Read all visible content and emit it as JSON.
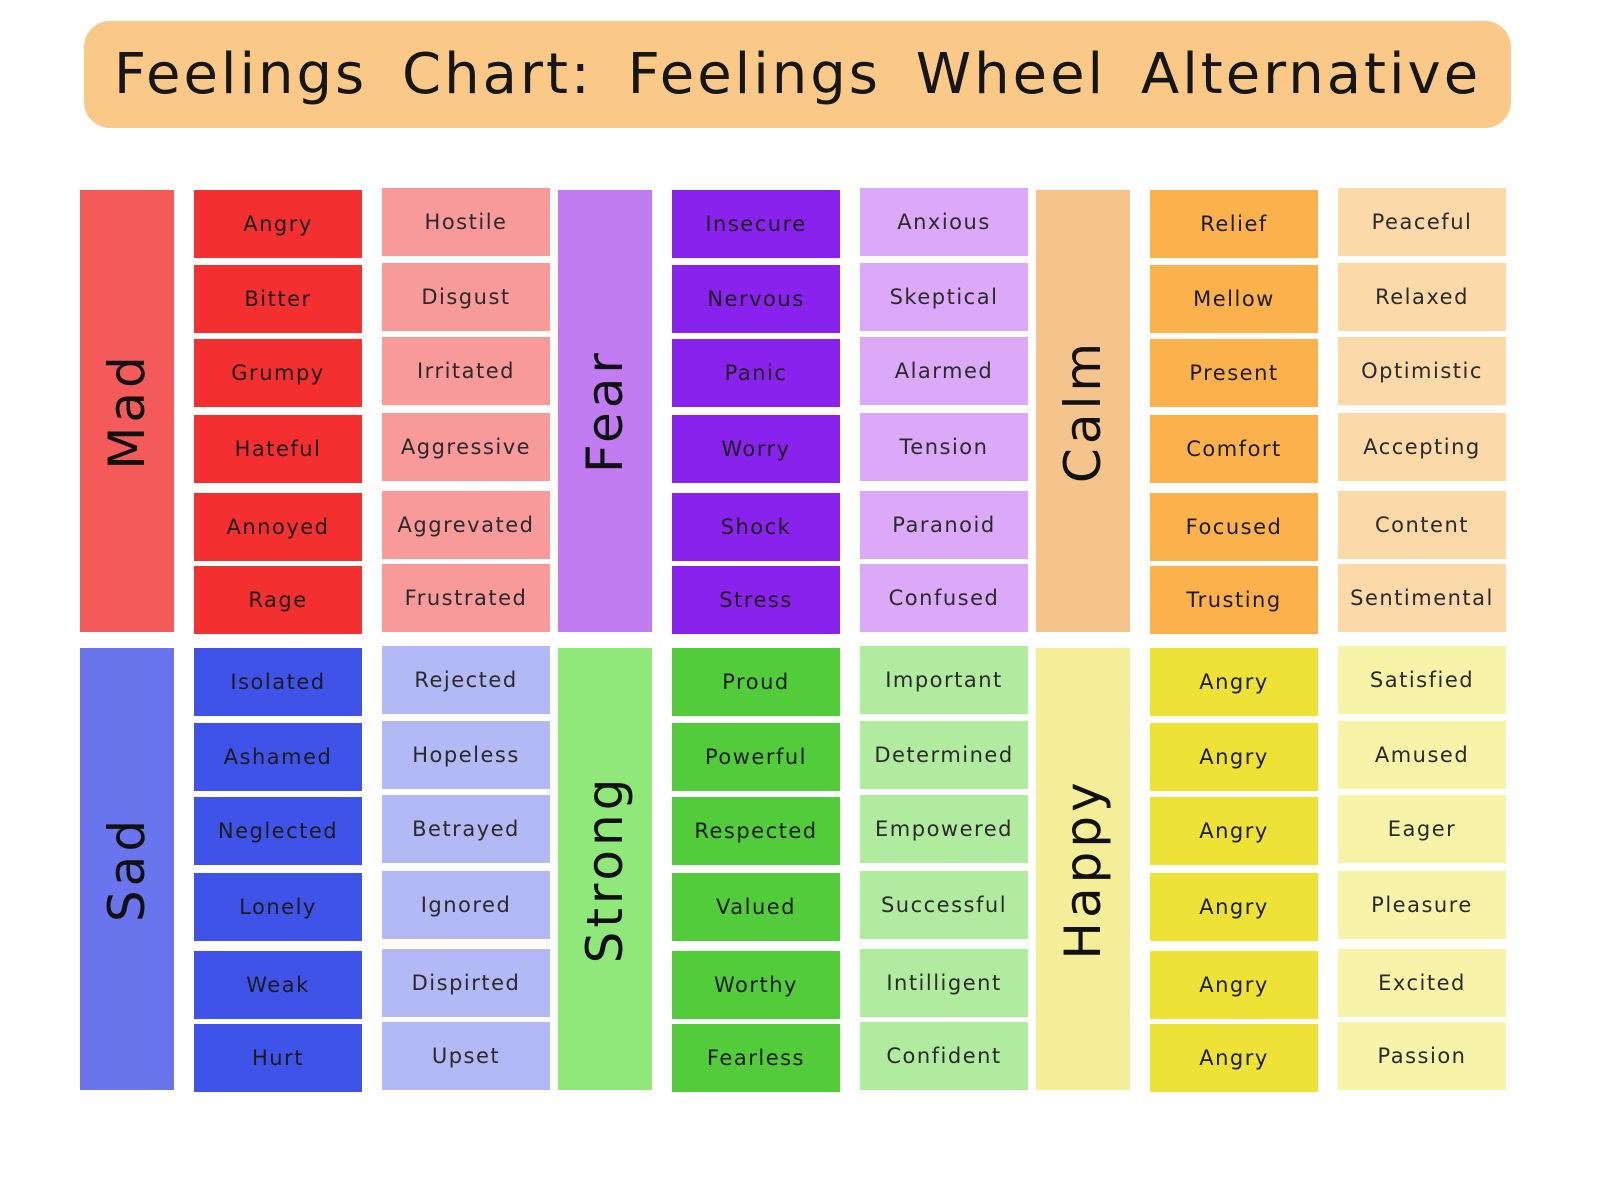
{
  "title": "Feelings Chart: Feelings Wheel Alternative",
  "groups": [
    {
      "label": "Mad",
      "label_color": "#f55a5a",
      "primary_color": "#f42f2f",
      "secondary_color": "#f99a9a",
      "primary": [
        "Angry",
        "Bitter",
        "Grumpy",
        "Hateful",
        "Annoyed",
        "Rage"
      ],
      "secondary": [
        "Hostile",
        "Disgust",
        "Irritated",
        "Aggressive",
        "Aggrevated",
        "Frustrated"
      ]
    },
    {
      "label": "Fear",
      "label_color": "#c17cf2",
      "primary_color": "#8a22ee",
      "secondary_color": "#dca9f8",
      "primary": [
        "Insecure",
        "Nervous",
        "Panic",
        "Worry",
        "Shock",
        "Stress"
      ],
      "secondary": [
        "Anxious",
        "Skeptical",
        "Alarmed",
        "Tension",
        "Paranoid",
        "Confused"
      ]
    },
    {
      "label": "Calm",
      "label_color": "#f5c48d",
      "primary_color": "#fbb14c",
      "secondary_color": "#fcd9a9",
      "primary": [
        "Relief",
        "Mellow",
        "Present",
        "Comfort",
        "Focused",
        "Trusting"
      ],
      "secondary": [
        "Peaceful",
        "Relaxed",
        "Optimistic",
        "Accepting",
        "Content",
        "Sentimental"
      ]
    },
    {
      "label": "Sad",
      "label_color": "#6a74ec",
      "primary_color": "#4053e8",
      "secondary_color": "#b3b9f5",
      "primary": [
        "Isolated",
        "Ashamed",
        "Neglected",
        "Lonely",
        "Weak",
        "Hurt"
      ],
      "secondary": [
        "Rejected",
        "Hopeless",
        "Betrayed",
        "Ignored",
        "Dispirted",
        "Upset"
      ]
    },
    {
      "label": "Strong",
      "label_color": "#8fe879",
      "primary_color": "#52cc3a",
      "secondary_color": "#b1eb9f",
      "primary": [
        "Proud",
        "Powerful",
        "Respected",
        "Valued",
        "Worthy",
        "Fearless"
      ],
      "secondary": [
        "Important",
        "Determined",
        "Empowered",
        "Successful",
        "Intilligent",
        "Confident"
      ]
    },
    {
      "label": "Happy",
      "label_color": "#f4ee99",
      "primary_color": "#ede235",
      "secondary_color": "#f7f3a9",
      "primary": [
        "Angry",
        "Angry",
        "Angry",
        "Angry",
        "Angry",
        "Angry"
      ],
      "secondary": [
        "Satisfied",
        "Amused",
        "Eager",
        "Pleasure",
        "Excited",
        "Passion"
      ]
    }
  ]
}
